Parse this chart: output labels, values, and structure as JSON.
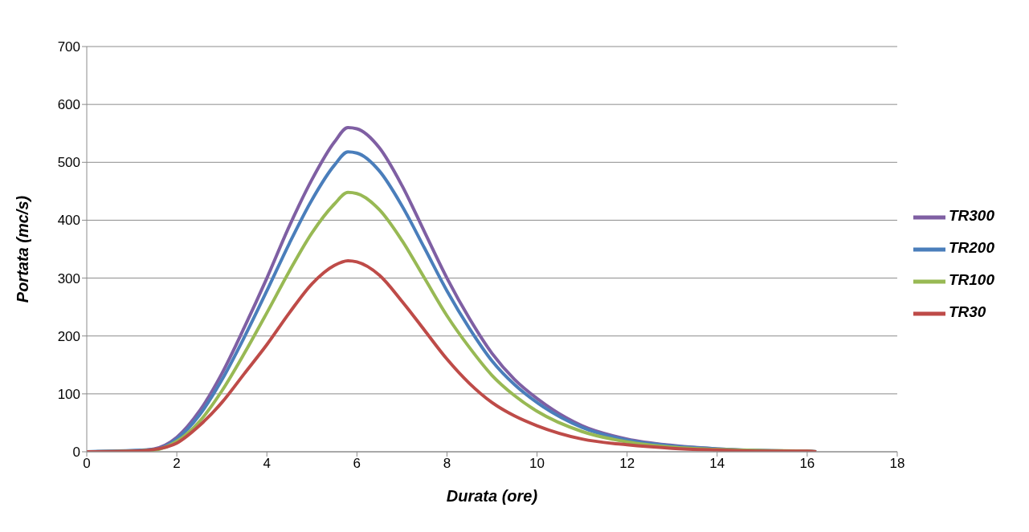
{
  "chart_data": {
    "type": "line",
    "xlabel": "Durata (ore)",
    "ylabel": "Portata (mc/s)",
    "xlim": [
      0,
      18
    ],
    "xticks": [
      0,
      2,
      4,
      6,
      8,
      10,
      12,
      14,
      16,
      18
    ],
    "ylim": [
      0,
      700
    ],
    "yticks": [
      0,
      100,
      200,
      300,
      400,
      500,
      600,
      700
    ],
    "grid": "y",
    "legend": "right",
    "marker": "none",
    "line_style": "solid",
    "series": [
      {
        "name": "TR300",
        "color": "#7f5fa3",
        "x": [
          0,
          1,
          1.5,
          2,
          2.5,
          3,
          3.5,
          4,
          4.5,
          5,
          5.5,
          5.8,
          6,
          6.5,
          7,
          7.5,
          8,
          8.5,
          9,
          9.5,
          10,
          11,
          12,
          13,
          14,
          15,
          16,
          16.2
        ],
        "values": [
          0,
          1,
          5,
          25,
          70,
          135,
          215,
          300,
          390,
          470,
          535,
          560,
          558,
          525,
          460,
          380,
          300,
          230,
          170,
          125,
          92,
          45,
          22,
          11,
          5,
          2,
          1,
          0
        ]
      },
      {
        "name": "TR200",
        "color": "#4a7ebb",
        "x": [
          0,
          1.5,
          2,
          2.5,
          3,
          3.5,
          4,
          4.5,
          5,
          5.5,
          5.8,
          6,
          6.5,
          7,
          7.5,
          8,
          8.5,
          9,
          9.5,
          10,
          11,
          12,
          13,
          14,
          15,
          16,
          16.2
        ],
        "values": [
          0,
          4,
          22,
          63,
          124,
          198,
          278,
          360,
          435,
          495,
          518,
          516,
          485,
          425,
          352,
          278,
          213,
          157,
          116,
          85,
          42,
          20,
          10,
          5,
          2,
          1,
          0
        ]
      },
      {
        "name": "TR100",
        "color": "#98b954",
        "x": [
          0,
          1,
          1.5,
          2,
          2.5,
          3,
          3.5,
          4,
          4.5,
          5,
          5.5,
          5.8,
          6,
          6.5,
          7,
          7.5,
          8,
          8.5,
          9,
          9.5,
          10,
          11,
          12,
          13,
          14,
          15,
          16,
          16.2
        ],
        "values": [
          0,
          1,
          3,
          18,
          52,
          105,
          170,
          240,
          312,
          378,
          428,
          448,
          446,
          418,
          365,
          300,
          235,
          180,
          132,
          97,
          70,
          35,
          17,
          8,
          4,
          2,
          1,
          0
        ]
      },
      {
        "name": "TR30",
        "color": "#be4b48",
        "x": [
          0,
          1,
          1.5,
          2,
          2.5,
          3,
          3.5,
          4,
          4.5,
          5,
          5.5,
          5.8,
          6,
          6.5,
          7,
          7.5,
          8,
          8.5,
          9,
          9.5,
          10,
          11,
          12,
          13,
          14,
          15,
          16,
          16.2
        ],
        "values": [
          0,
          1,
          4,
          15,
          45,
          85,
          135,
          185,
          240,
          290,
          322,
          330,
          328,
          305,
          260,
          210,
          160,
          118,
          85,
          62,
          45,
          22,
          12,
          6,
          3,
          1,
          1,
          0
        ]
      }
    ]
  }
}
